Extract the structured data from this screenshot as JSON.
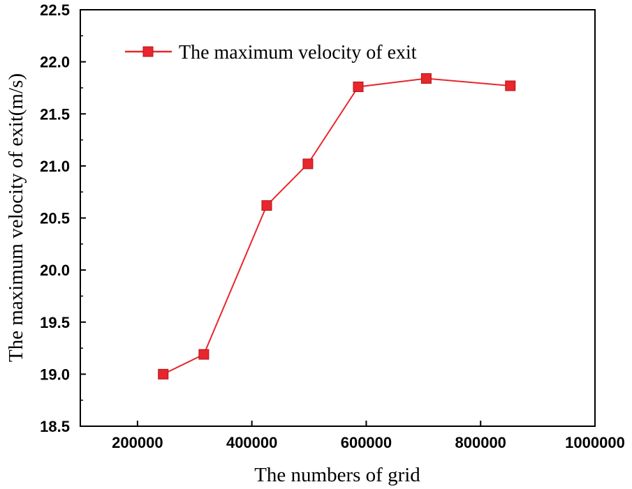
{
  "chart_data": {
    "type": "line",
    "title": "",
    "xlabel": "The numbers of grid",
    "ylabel": "The maximum velocity of exit(m/s)",
    "xlim": [
      100000,
      1000000
    ],
    "ylim": [
      18.5,
      22.5
    ],
    "x_ticks": [
      200000,
      400000,
      600000,
      800000,
      1000000
    ],
    "y_ticks": [
      18.5,
      19.0,
      19.5,
      20.0,
      20.5,
      21.0,
      21.5,
      22.0,
      22.5
    ],
    "x_tick_labels": [
      "200000",
      "400000",
      "600000",
      "800000",
      "1000000"
    ],
    "y_tick_labels": [
      "18.5",
      "19.0",
      "19.5",
      "20.0",
      "20.5",
      "21.0",
      "21.5",
      "22.0",
      "22.5"
    ],
    "grid": false,
    "legend_position": "top-left",
    "series": [
      {
        "name": "The maximum velocity of exit",
        "color": "#e8262c",
        "marker": "square",
        "x": [
          245000,
          316000,
          426000,
          498000,
          586000,
          705000,
          852000
        ],
        "y": [
          19.0,
          19.19,
          20.62,
          21.02,
          21.76,
          21.84,
          21.77
        ]
      }
    ]
  }
}
